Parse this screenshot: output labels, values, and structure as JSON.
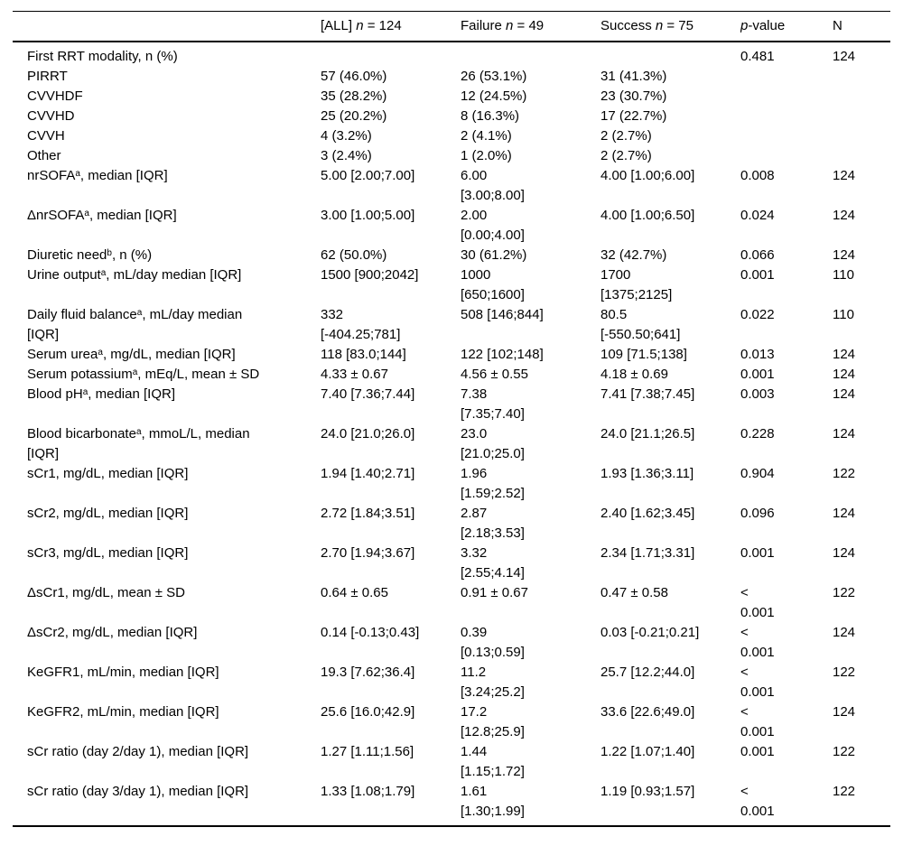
{
  "table": {
    "header": {
      "label": "",
      "all": {
        "pre": "[ALL] ",
        "italic": "n",
        "post": " = 124"
      },
      "failure": {
        "pre": "Failure ",
        "italic": "n",
        "post": " = 49"
      },
      "success": {
        "pre": "Success ",
        "italic": "n",
        "post": " = 75"
      },
      "p": {
        "pre": "",
        "italic": "p",
        "post": "-value"
      },
      "n": {
        "pre": "N",
        "italic": "",
        "post": ""
      }
    },
    "rows": [
      {
        "label": {
          "pre": "First RRT modality, n (%)",
          "sup": "",
          "post": ""
        },
        "all": "",
        "failure": "",
        "success": "",
        "p": "0.481",
        "n": "124"
      },
      {
        "label": {
          "pre": "PIRRT",
          "sup": "",
          "post": ""
        },
        "all": "57 (46.0%)",
        "failure": "26 (53.1%)",
        "success": "31 (41.3%)",
        "p": "",
        "n": ""
      },
      {
        "label": {
          "pre": "CVVHDF",
          "sup": "",
          "post": ""
        },
        "all": "35 (28.2%)",
        "failure": "12 (24.5%)",
        "success": "23 (30.7%)",
        "p": "",
        "n": ""
      },
      {
        "label": {
          "pre": "CVVHD",
          "sup": "",
          "post": ""
        },
        "all": "25 (20.2%)",
        "failure": "8 (16.3%)",
        "success": "17 (22.7%)",
        "p": "",
        "n": ""
      },
      {
        "label": {
          "pre": "CVVH",
          "sup": "",
          "post": ""
        },
        "all": "4 (3.2%)",
        "failure": "2 (4.1%)",
        "success": "2 (2.7%)",
        "p": "",
        "n": ""
      },
      {
        "label": {
          "pre": "Other",
          "sup": "",
          "post": ""
        },
        "all": "3 (2.4%)",
        "failure": "1 (2.0%)",
        "success": "2 (2.7%)",
        "p": "",
        "n": ""
      },
      {
        "label": {
          "pre": "nrSOFA",
          "sup": "a",
          "post": ", median [IQR]"
        },
        "all": "5.00 [2.00;7.00]",
        "failure": "6.00\n[3.00;8.00]",
        "success": "4.00 [1.00;6.00]",
        "p": "0.008",
        "n": "124"
      },
      {
        "label": {
          "pre": "ΔnrSOFA",
          "sup": "a",
          "post": ", median [IQR]"
        },
        "all": "3.00 [1.00;5.00]",
        "failure": "2.00\n[0.00;4.00]",
        "success": "4.00 [1.00;6.50]",
        "p": "0.024",
        "n": "124"
      },
      {
        "label": {
          "pre": "Diuretic need",
          "sup": "b",
          "post": ", n (%)"
        },
        "all": "62 (50.0%)",
        "failure": "30 (61.2%)",
        "success": "32 (42.7%)",
        "p": "0.066",
        "n": "124"
      },
      {
        "label": {
          "pre": "Urine output",
          "sup": "a",
          "post": ", mL/day median [IQR]"
        },
        "all": "1500 [900;2042]",
        "failure": "1000\n[650;1600]",
        "success": "1700\n[1375;2125]",
        "p": "0.001",
        "n": "110"
      },
      {
        "label": {
          "pre": "Daily fluid balance",
          "sup": "a",
          "post": ", mL/day median\n[IQR]"
        },
        "all": "332\n[-404.25;781]",
        "failure": "508 [146;844]",
        "success": "80.5\n[-550.50;641]",
        "p": "0.022",
        "n": "110"
      },
      {
        "label": {
          "pre": "Serum urea",
          "sup": "a",
          "post": ", mg/dL, median [IQR]"
        },
        "all": "118 [83.0;144]",
        "failure": "122 [102;148]",
        "success": "109 [71.5;138]",
        "p": "0.013",
        "n": "124"
      },
      {
        "label": {
          "pre": "Serum potassium",
          "sup": "a",
          "post": ", mEq/L, mean ± SD"
        },
        "all": "4.33 ± 0.67",
        "failure": "4.56 ± 0.55",
        "success": "4.18 ± 0.69",
        "p": "0.001",
        "n": "124"
      },
      {
        "label": {
          "pre": "Blood pH",
          "sup": "a",
          "post": ", median [IQR]"
        },
        "all": "7.40 [7.36;7.44]",
        "failure": "7.38\n[7.35;7.40]",
        "success": "7.41 [7.38;7.45]",
        "p": "0.003",
        "n": "124"
      },
      {
        "label": {
          "pre": "Blood bicarbonate",
          "sup": "a",
          "post": ", mmoL/L, median\n[IQR]"
        },
        "all": "24.0 [21.0;26.0]",
        "failure": "23.0\n[21.0;25.0]",
        "success": "24.0 [21.1;26.5]",
        "p": "0.228",
        "n": "124"
      },
      {
        "label": {
          "pre": "sCr1, mg/dL, median [IQR]",
          "sup": "",
          "post": ""
        },
        "all": "1.94 [1.40;2.71]",
        "failure": "1.96\n[1.59;2.52]",
        "success": "1.93 [1.36;3.11]",
        "p": "0.904",
        "n": "122"
      },
      {
        "label": {
          "pre": "sCr2, mg/dL, median [IQR]",
          "sup": "",
          "post": ""
        },
        "all": "2.72 [1.84;3.51]",
        "failure": "2.87\n[2.18;3.53]",
        "success": "2.40 [1.62;3.45]",
        "p": "0.096",
        "n": "124"
      },
      {
        "label": {
          "pre": "sCr3, mg/dL, median [IQR]",
          "sup": "",
          "post": ""
        },
        "all": "2.70 [1.94;3.67]",
        "failure": "3.32\n[2.55;4.14]",
        "success": "2.34 [1.71;3.31]",
        "p": "0.001",
        "n": "124"
      },
      {
        "label": {
          "pre": "ΔsCr1, mg/dL, mean ± SD",
          "sup": "",
          "post": ""
        },
        "all": "0.64 ± 0.65",
        "failure": "0.91 ± 0.67",
        "success": "0.47 ± 0.58",
        "p": "<\n0.001",
        "n": "122"
      },
      {
        "label": {
          "pre": "ΔsCr2, mg/dL, median [IQR]",
          "sup": "",
          "post": ""
        },
        "all": "0.14 [-0.13;0.43]",
        "failure": "0.39\n[0.13;0.59]",
        "success": "0.03 [-0.21;0.21]",
        "p": "<\n0.001",
        "n": "124"
      },
      {
        "label": {
          "pre": "KeGFR1, mL/min, median [IQR]",
          "sup": "",
          "post": ""
        },
        "all": "19.3 [7.62;36.4]",
        "failure": "11.2\n[3.24;25.2]",
        "success": "25.7 [12.2;44.0]",
        "p": "<\n0.001",
        "n": "122"
      },
      {
        "label": {
          "pre": "KeGFR2, mL/min, median [IQR]",
          "sup": "",
          "post": ""
        },
        "all": "25.6 [16.0;42.9]",
        "failure": "17.2\n[12.8;25.9]",
        "success": "33.6 [22.6;49.0]",
        "p": "<\n0.001",
        "n": "124"
      },
      {
        "label": {
          "pre": "sCr ratio (day 2/day 1), median [IQR]",
          "sup": "",
          "post": ""
        },
        "all": "1.27 [1.11;1.56]",
        "failure": "1.44\n[1.15;1.72]",
        "success": "1.22 [1.07;1.40]",
        "p": "0.001",
        "n": "122"
      },
      {
        "label": {
          "pre": "sCr ratio (day 3/day 1), median [IQR]",
          "sup": "",
          "post": ""
        },
        "all": "1.33 [1.08;1.79]",
        "failure": "1.61\n[1.30;1.99]",
        "success": "1.19 [0.93;1.57]",
        "p": "<\n0.001",
        "n": "122"
      }
    ]
  }
}
